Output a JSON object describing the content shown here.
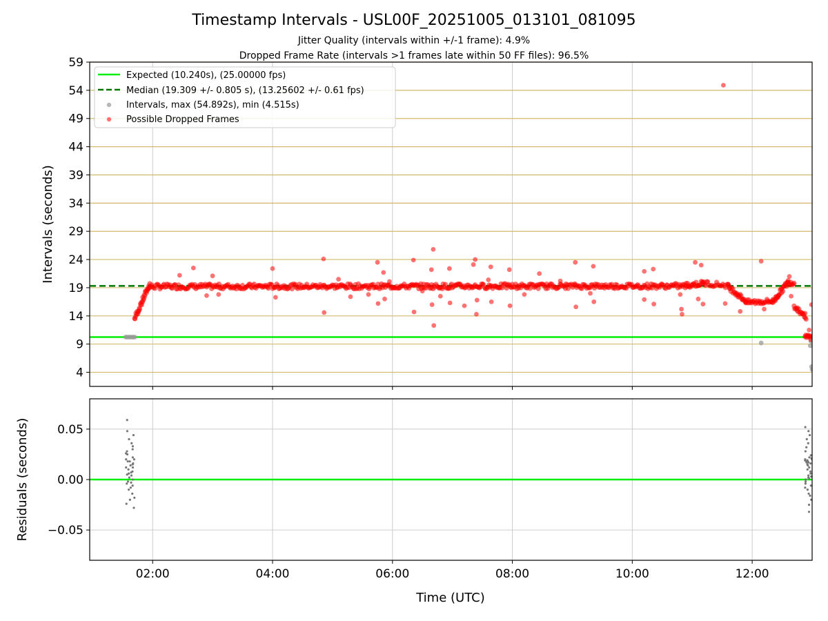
{
  "chart_data": [
    {
      "type": "scatter",
      "title": "Timestamp Intervals - USL00F_20251005_013101_081095",
      "subtitle_lines": [
        "Jitter Quality (intervals within +/-1 frame): 4.9%",
        "Dropped Frame Rate (intervals >1 frames late within 50 FF files): 96.5%"
      ],
      "ylabel": "Intervals (seconds)",
      "xlabel": "",
      "x_units": "hours UTC",
      "xlim": [
        0.95,
        13.0
      ],
      "ylim": [
        1.5,
        59
      ],
      "yticks": [
        4,
        9,
        14,
        19,
        24,
        29,
        34,
        39,
        44,
        49,
        54,
        59
      ],
      "xticks": [
        2,
        4,
        6,
        8,
        10,
        12
      ],
      "grid": "horizontal gold lines at y ticks, vertical grey lines at x ticks",
      "legend_position": "upper-left",
      "legend": [
        "Expected (10.240s), (25.00000 fps)",
        "Median (19.309 +/- 0.805 s), (13.25602 +/- 0.61 fps)",
        "Intervals, max (54.892s), min (4.515s)",
        "Possible Dropped Frames"
      ],
      "expected_interval": 10.24,
      "median_interval": 19.309,
      "colors": {
        "expected": "#00ee00",
        "median": "#007700",
        "intervals": "#999999",
        "dropped": "#ff0000",
        "grid_y": "#d2b96a",
        "grid_x": "#cccccc"
      },
      "baseline_intervals": [
        [
          1.55,
          10.24
        ],
        [
          1.58,
          10.24
        ],
        [
          1.61,
          10.24
        ],
        [
          1.64,
          10.24
        ],
        [
          1.67,
          10.24
        ],
        [
          1.7,
          10.24
        ],
        [
          12.15,
          9.2
        ],
        [
          12.98,
          10.3
        ],
        [
          12.98,
          9.5
        ],
        [
          12.97,
          8.7
        ],
        [
          12.99,
          5.0
        ],
        [
          13.0,
          4.5
        ]
      ],
      "trend_segments": [
        {
          "x0": 1.7,
          "x1": 1.95,
          "y0": 13.5,
          "y1": 19.6,
          "n": 30
        },
        {
          "x0": 1.95,
          "x1": 10.9,
          "y0": 19.2,
          "y1": 19.3,
          "n": 520
        },
        {
          "x0": 10.9,
          "x1": 11.2,
          "y0": 19.4,
          "y1": 19.8,
          "n": 24
        },
        {
          "x0": 11.2,
          "x1": 11.6,
          "y0": 19.8,
          "y1": 19.4,
          "n": 20
        },
        {
          "x0": 11.6,
          "x1": 11.9,
          "y0": 19.2,
          "y1": 16.6,
          "n": 26
        },
        {
          "x0": 11.9,
          "x1": 12.35,
          "y0": 16.4,
          "y1": 16.6,
          "n": 30
        },
        {
          "x0": 12.35,
          "x1": 12.6,
          "y0": 16.6,
          "y1": 20.0,
          "n": 26
        },
        {
          "x0": 12.6,
          "x1": 12.7,
          "y0": 20.0,
          "y1": 19.8,
          "n": 8
        },
        {
          "x0": 12.7,
          "x1": 12.9,
          "y0": 15.8,
          "y1": 13.8,
          "n": 18
        },
        {
          "x0": 12.88,
          "x1": 12.98,
          "y0": 10.25,
          "y1": 10.25,
          "n": 10
        }
      ],
      "dropped_outliers": [
        [
          2.45,
          21.2
        ],
        [
          2.68,
          22.5
        ],
        [
          2.9,
          17.6
        ],
        [
          3.0,
          21.1
        ],
        [
          3.1,
          17.8
        ],
        [
          4.0,
          22.4
        ],
        [
          4.05,
          17.3
        ],
        [
          4.85,
          24.1
        ],
        [
          4.86,
          14.6
        ],
        [
          5.1,
          20.5
        ],
        [
          5.3,
          17.4
        ],
        [
          5.6,
          17.8
        ],
        [
          5.75,
          23.5
        ],
        [
          5.76,
          16.2
        ],
        [
          5.85,
          21.7
        ],
        [
          5.87,
          17.0
        ],
        [
          5.95,
          20.1
        ],
        [
          6.35,
          23.9
        ],
        [
          6.36,
          14.7
        ],
        [
          6.5,
          18.4
        ],
        [
          6.65,
          22.2
        ],
        [
          6.66,
          16.0
        ],
        [
          6.68,
          25.8
        ],
        [
          6.69,
          12.3
        ],
        [
          6.8,
          17.5
        ],
        [
          6.95,
          22.4
        ],
        [
          6.96,
          16.3
        ],
        [
          7.2,
          15.8
        ],
        [
          7.35,
          23.1
        ],
        [
          7.38,
          24.0
        ],
        [
          7.4,
          14.3
        ],
        [
          7.41,
          16.8
        ],
        [
          7.6,
          20.4
        ],
        [
          7.64,
          22.7
        ],
        [
          7.65,
          16.5
        ],
        [
          7.95,
          22.2
        ],
        [
          7.96,
          15.8
        ],
        [
          8.2,
          17.8
        ],
        [
          8.45,
          21.5
        ],
        [
          8.8,
          20.2
        ],
        [
          9.05,
          23.5
        ],
        [
          9.06,
          15.6
        ],
        [
          9.3,
          18.0
        ],
        [
          9.35,
          22.8
        ],
        [
          9.36,
          16.5
        ],
        [
          10.2,
          21.9
        ],
        [
          10.2,
          16.9
        ],
        [
          10.35,
          22.3
        ],
        [
          10.36,
          16.1
        ],
        [
          10.8,
          17.8
        ],
        [
          10.82,
          15.2
        ],
        [
          10.83,
          14.3
        ],
        [
          11.05,
          23.5
        ],
        [
          11.1,
          17.0
        ],
        [
          11.15,
          23.0
        ],
        [
          11.18,
          16.1
        ],
        [
          11.52,
          54.9
        ],
        [
          11.55,
          16.2
        ],
        [
          11.8,
          14.8
        ],
        [
          12.15,
          23.7
        ],
        [
          12.2,
          15.2
        ],
        [
          12.62,
          21.0
        ],
        [
          12.65,
          17.5
        ],
        [
          12.95,
          11.5
        ],
        [
          12.99,
          16.0
        ]
      ]
    },
    {
      "type": "scatter",
      "xlabel": "Time (UTC)",
      "ylabel": "Residuals (seconds)",
      "xlim": [
        0.95,
        13.0
      ],
      "ylim": [
        -0.08,
        0.08
      ],
      "yticks": [
        -0.05,
        0.0,
        0.05
      ],
      "ytick_labels": [
        "−0.05",
        "0.00",
        "0.05"
      ],
      "xticks": [
        2,
        4,
        6,
        8,
        10,
        12
      ],
      "xtick_labels": [
        "02:00",
        "04:00",
        "06:00",
        "08:00",
        "10:00",
        "12:00"
      ],
      "zero_line": 0.0,
      "point_color": "#777777",
      "clusters": [
        {
          "x_range": [
            1.55,
            1.7
          ],
          "values": [
            0.059,
            0.048,
            0.044,
            0.04,
            0.036,
            0.033,
            0.03,
            0.028,
            0.025,
            0.022,
            0.02,
            0.018,
            0.016,
            0.015,
            0.012,
            0.01,
            0.008,
            0.006,
            0.004,
            0.002,
            0.0,
            -0.002,
            -0.004,
            -0.006,
            -0.008,
            -0.01,
            -0.014,
            -0.018,
            -0.02,
            -0.024,
            -0.028,
            0.02,
            0.018,
            0.012,
            0.005,
            -0.003,
            0.026,
            0.014,
            0.007
          ]
        },
        {
          "x_range": [
            12.88,
            13.0
          ],
          "values": [
            0.052,
            0.048,
            0.044,
            0.04,
            0.036,
            0.032,
            0.028,
            0.024,
            0.022,
            0.021,
            0.02,
            0.019,
            0.018,
            0.017,
            0.016,
            0.015,
            0.012,
            0.01,
            0.008,
            0.006,
            0.004,
            0.003,
            0.002,
            0.001,
            0.0,
            -0.002,
            -0.004,
            -0.006,
            -0.008,
            -0.01,
            -0.014,
            -0.016,
            -0.02,
            -0.025,
            -0.032,
            0.019,
            0.018,
            0.02,
            0.017,
            0.014
          ]
        }
      ]
    }
  ]
}
